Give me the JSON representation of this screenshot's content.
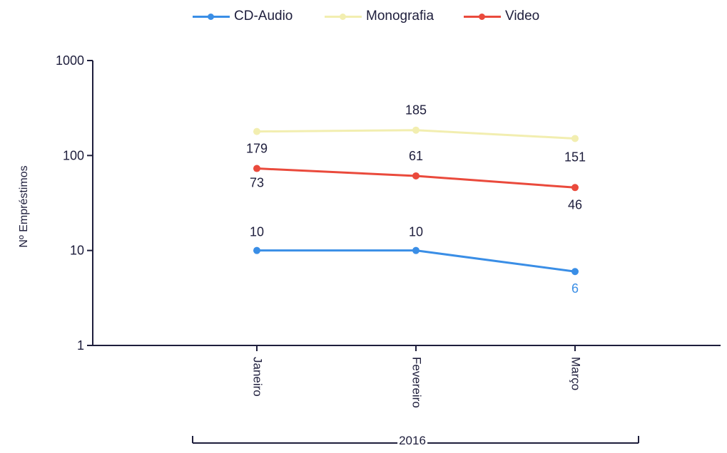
{
  "chart_data": {
    "type": "line",
    "title": "",
    "ylabel": "Nº Empréstimos",
    "xlabel": "",
    "y_scale": "log",
    "ylim": [
      1,
      1000
    ],
    "yticks": [
      "1",
      "10",
      "100",
      "1000"
    ],
    "categories": [
      "Janeiro",
      "Fevereiro",
      "Março"
    ],
    "group_label": "2016",
    "legend_position": "top",
    "grid": false,
    "series": [
      {
        "name": "CD-Audio",
        "color": "#3a8ee6",
        "values": [
          10,
          10,
          6
        ],
        "labels": [
          "10",
          "10",
          "6"
        ]
      },
      {
        "name": "Monografia",
        "color": "#f2eeb0",
        "values": [
          179,
          185,
          151
        ],
        "labels": [
          "179",
          "185",
          "151"
        ]
      },
      {
        "name": "Video",
        "color": "#ea4a3c",
        "values": [
          73,
          61,
          46
        ],
        "labels": [
          "73",
          "61",
          "46"
        ]
      }
    ]
  }
}
